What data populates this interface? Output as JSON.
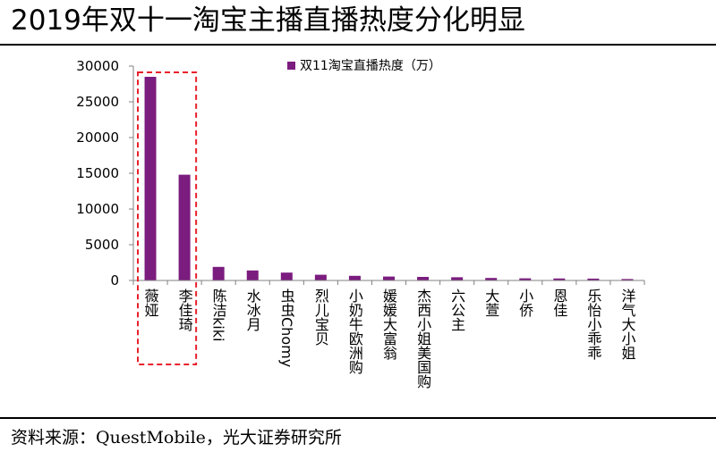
{
  "title": "2019年双十一淘宝主播直播热度分化明显",
  "source": "资料来源：QuestMobile，光大证券研究所",
  "colors": {
    "bar": "#7B1C7F",
    "highlight_box": "#E8202A",
    "axis": "#808080"
  },
  "chart_data": {
    "type": "bar",
    "categories": [
      "薇娅",
      "李佳琦",
      "陈洁kiki",
      "水冰月",
      "虫虫Chomy",
      "烈儿宝贝",
      "小奶牛欧洲购",
      "媛媛大富翁",
      "杰西小姐美国购",
      "六公主",
      "大萱",
      "小侨",
      "恩佳",
      "乐怡小乖乖",
      "洋气大小姐"
    ],
    "series": [
      {
        "name": "双11淘宝直播热度（万）",
        "values": [
          28500,
          14800,
          1900,
          1400,
          1100,
          800,
          650,
          550,
          500,
          450,
          350,
          300,
          280,
          260,
          200
        ]
      }
    ],
    "ylim": [
      0,
      30000
    ],
    "yticks": [
      "0",
      "5000",
      "10000",
      "15000",
      "20000",
      "25000",
      "30000"
    ],
    "legend_position": "top-center",
    "grid": false,
    "highlighted_categories": [
      "薇娅",
      "李佳琦"
    ]
  }
}
